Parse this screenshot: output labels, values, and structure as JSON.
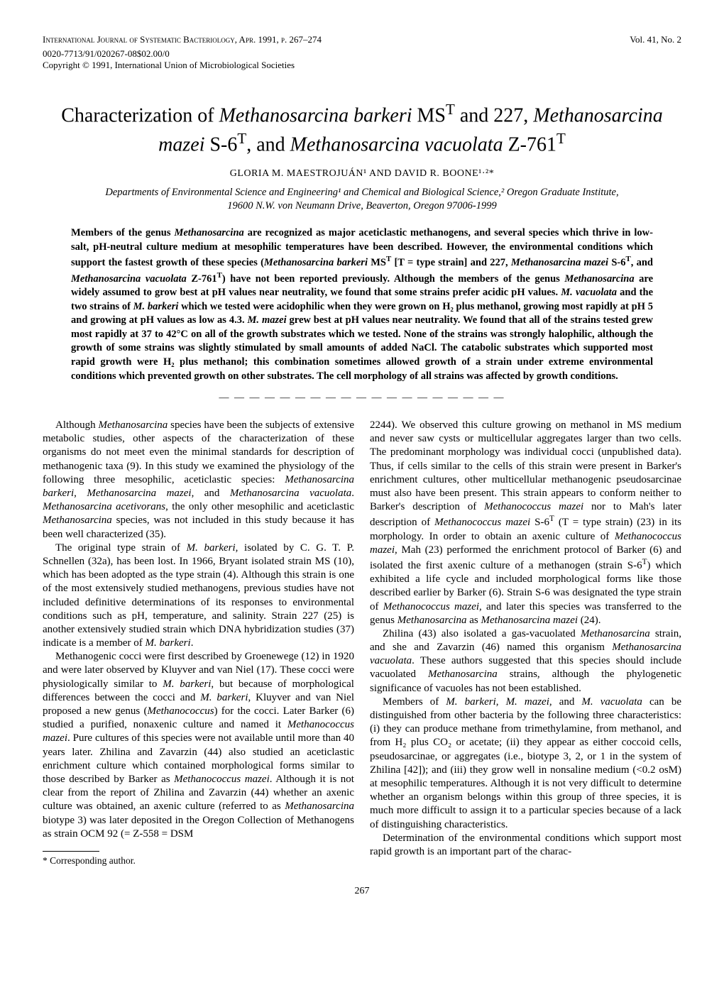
{
  "header": {
    "journal": "International Journal of Systematic Bacteriology, Apr. 1991, p. 267–274",
    "issn": "0020-7713/91/020267-08$02.00/0",
    "copyright": "Copyright © 1991, International Union of Microbiological Societies",
    "vol": "Vol. 41, No. 2"
  },
  "title_html": "Characterization of <span class=\"ital\">Methanosarcina barkeri</span> MS<sup>T</sup> and 227, <span class=\"ital\">Methanosarcina mazei</span> S-6<sup>T</sup>, and <span class=\"ital\">Methanosarcina vacuolata</span> Z-761<sup>T</sup>",
  "authors": "GLORIA M. MAESTROJUÁN¹ AND DAVID R. BOONE¹·²*",
  "affiliation": "Departments of Environmental Science and Engineering¹ and Chemical and Biological Science,² Oregon Graduate Institute, 19600 N.W. von Neumann Drive, Beaverton, Oregon 97006-1999",
  "abstract_html": "Members of the genus <span class=\"ital\">Methanosarcina</span> are recognized as major aceticlastic methanogens, and several species which thrive in low-salt, pH-neutral culture medium at mesophilic temperatures have been described. However, the environmental conditions which support the fastest growth of these species (<span class=\"ital\">Methanosarcina barkeri</span> MS<sup>T</sup> [T = type strain] and 227, <span class=\"ital\">Methanosarcina mazei</span> S-6<sup>T</sup>, and <span class=\"ital\">Methanosarcina vacuolata</span> Z-761<sup>T</sup>) have not been reported previously. Although the members of the genus <span class=\"ital\">Methanosarcina</span> are widely assumed to grow best at pH values near neutrality, we found that some strains prefer acidic pH values. <span class=\"ital\">M. vacuolata</span> and the two strains of <span class=\"ital\">M. barkeri</span> which we tested were acidophilic when they were grown on H₂ plus methanol, growing most rapidly at pH 5 and growing at pH values as low as 4.3. <span class=\"ital\">M. mazei</span> grew best at pH values near neutrality. We found that all of the strains tested grew most rapidly at 37 to 42°C on all of the growth substrates which we tested. None of the strains was strongly halophilic, although the growth of some strains was slightly stimulated by small amounts of added NaCl. The catabolic substrates which supported most rapid growth were H₂ plus methanol; this combination sometimes allowed growth of a strain under extreme environmental conditions which prevented growth on other substrates. The cell morphology of all strains was affected by growth conditions.",
  "body": {
    "p1": "Although <span class=\"ital\">Methanosarcina</span> species have been the subjects of extensive metabolic studies, other aspects of the characterization of these organisms do not meet even the minimal standards for description of methanogenic taxa (9). In this study we examined the physiology of the following three mesophilic, aceticlastic species: <span class=\"ital\">Methanosarcina barkeri</span>, <span class=\"ital\">Methanosarcina mazei</span>, and <span class=\"ital\">Methanosarcina vacuolata</span>. <span class=\"ital\">Methanosarcina acetivorans</span>, the only other mesophilic and aceticlastic <span class=\"ital\">Methanosarcina</span> species, was not included in this study because it has been well characterized (35).",
    "p2": "The original type strain of <span class=\"ital\">M. barkeri</span>, isolated by C. G. T. P. Schnellen (32a), has been lost. In 1966, Bryant isolated strain MS (10), which has been adopted as the type strain (4). Although this strain is one of the most extensively studied methanogens, previous studies have not included definitive determinations of its responses to environmental conditions such as pH, temperature, and salinity. Strain 227 (25) is another extensively studied strain which DNA hybridization studies (37) indicate is a member of <span class=\"ital\">M. barkeri</span>.",
    "p3": "Methanogenic cocci were first described by Groenewege (12) in 1920 and were later observed by Kluyver and van Niel (17). These cocci were physiologically similar to <span class=\"ital\">M. barkeri</span>, but because of morphological differences between the cocci and <span class=\"ital\">M. barkeri</span>, Kluyver and van Niel proposed a new genus (<span class=\"ital\">Methanococcus</span>) for the cocci. Later Barker (6) studied a purified, nonaxenic culture and named it <span class=\"ital\">Methanococcus mazei</span>. Pure cultures of this species were not available until more than 40 years later. Zhilina and Zavarzin (44) also studied an aceticlastic enrichment culture which contained morphological forms similar to those described by Barker as <span class=\"ital\">Methanococcus mazei</span>. Although it is not clear from the report of Zhilina and Zavarzin (44) whether an axenic culture was obtained, an axenic culture (referred to as <span class=\"ital\">Methanosarcina</span> biotype 3) was later deposited in the Oregon Collection of Methanogens as strain OCM 92 (= Z-558 = DSM",
    "p4": "2244). We observed this culture growing on methanol in MS medium and never saw cysts or multicellular aggregates larger than two cells. The predominant morphology was individual cocci (unpublished data). Thus, if cells similar to the cells of this strain were present in Barker's enrichment cultures, other multicellular methanogenic pseudosarcinae must also have been present. This strain appears to conform neither to Barker's description of <span class=\"ital\">Methanococcus mazei</span> nor to Mah's later description of <span class=\"ital\">Methanococcus mazei</span> S-6<sup>T</sup> (T = type strain) (23) in its morphology. In order to obtain an axenic culture of <span class=\"ital\">Methanococcus mazei</span>, Mah (23) performed the enrichment protocol of Barker (6) and isolated the first axenic culture of a methanogen (strain S-6<sup>T</sup>) which exhibited a life cycle and included morphological forms like those described earlier by Barker (6). Strain S-6 was designated the type strain of <span class=\"ital\">Methanococcus mazei</span>, and later this species was transferred to the genus <span class=\"ital\">Methanosarcina</span> as <span class=\"ital\">Methanosarcina mazei</span> (24).",
    "p5": "Zhilina (43) also isolated a gas-vacuolated <span class=\"ital\">Methanosarcina</span> strain, and she and Zavarzin (46) named this organism <span class=\"ital\">Methanosarcina vacuolata</span>. These authors suggested that this species should include vacuolated <span class=\"ital\">Methanosarcina</span> strains, although the phylogenetic significance of vacuoles has not been established.",
    "p6": "Members of <span class=\"ital\">M. barkeri</span>, <span class=\"ital\">M. mazei</span>, and <span class=\"ital\">M. vacuolata</span> can be distinguished from other bacteria by the following three characteristics: (i) they can produce methane from trimethylamine, from methanol, and from H₂ plus CO₂ or acetate; (ii) they appear as either coccoid cells, pseudosarcinae, or aggregates (i.e., biotype 3, 2, or 1 in the system of Zhilina [42]); and (iii) they grow well in nonsaline medium (<0.2 osM) at mesophilic temperatures. Although it is not very difficult to determine whether an organism belongs within this group of three species, it is much more difficult to assign it to a particular species because of a lack of distinguishing characteristics.",
    "p7": "Determination of the environmental conditions which support most rapid growth is an important part of the charac-"
  },
  "footnote": "* Corresponding author.",
  "page_number": "267"
}
